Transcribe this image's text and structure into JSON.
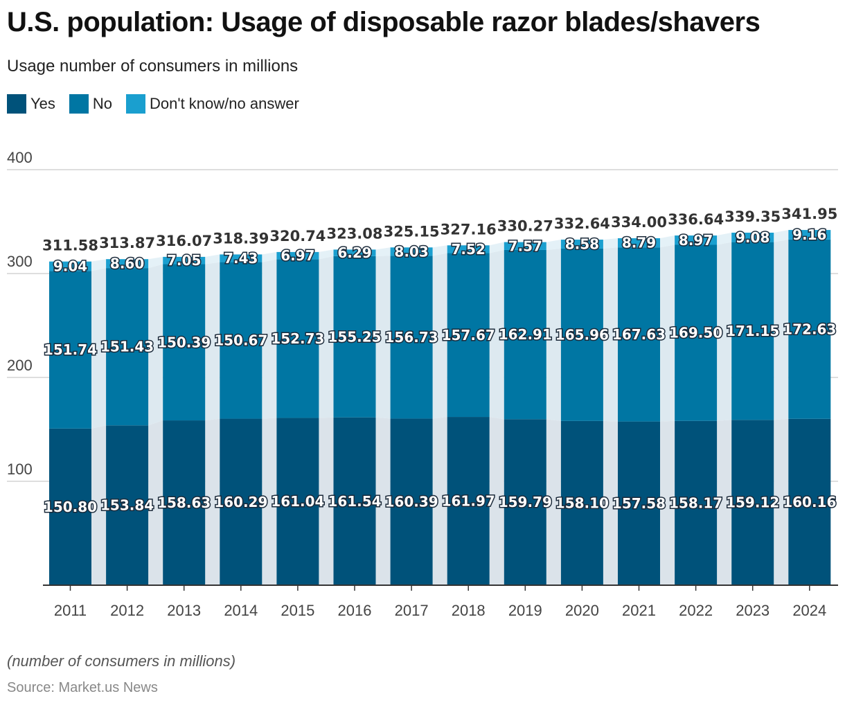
{
  "title": "U.S. population: Usage of disposable razor blades/shavers",
  "subtitle": "Usage number of consumers in millions",
  "legend": [
    {
      "label": "Yes",
      "color": "#00527a"
    },
    {
      "label": "No",
      "color": "#0076a3"
    },
    {
      "label": "Don't know/no answer",
      "color": "#1a9fcf"
    }
  ],
  "note": "(number of consumers in millions)",
  "source": "Source: Market.us News",
  "chart_data": {
    "type": "bar",
    "stacked": true,
    "categories": [
      "2011",
      "2012",
      "2013",
      "2014",
      "2015",
      "2016",
      "2017",
      "2018",
      "2019",
      "2020",
      "2021",
      "2022",
      "2023",
      "2024"
    ],
    "series": [
      {
        "name": "Yes",
        "color": "#00527a",
        "values": [
          150.8,
          153.84,
          158.63,
          160.29,
          161.04,
          161.54,
          160.39,
          161.97,
          159.79,
          158.1,
          157.58,
          158.17,
          159.12,
          160.16
        ]
      },
      {
        "name": "No",
        "color": "#0076a3",
        "values": [
          151.74,
          151.43,
          150.39,
          150.67,
          152.73,
          155.25,
          156.73,
          157.67,
          162.91,
          165.96,
          167.63,
          169.5,
          171.15,
          172.63
        ]
      },
      {
        "name": "Don't know/no answer",
        "color": "#1a9fcf",
        "values": [
          9.04,
          8.6,
          7.05,
          7.43,
          6.97,
          6.29,
          8.03,
          7.52,
          7.57,
          8.58,
          8.79,
          8.97,
          9.08,
          9.16
        ]
      }
    ],
    "totals": [
      "311.58",
      "313.87",
      "316.07",
      "318.39",
      "320.74",
      "323.08",
      "325.15",
      "327.16",
      "330.27",
      "332.64",
      "334.00",
      "336.64",
      "339.35",
      "341.95"
    ],
    "ylim": [
      0,
      400
    ],
    "yticks": [
      100,
      200,
      300,
      400
    ],
    "grid": true,
    "legend_position": "top-left"
  }
}
